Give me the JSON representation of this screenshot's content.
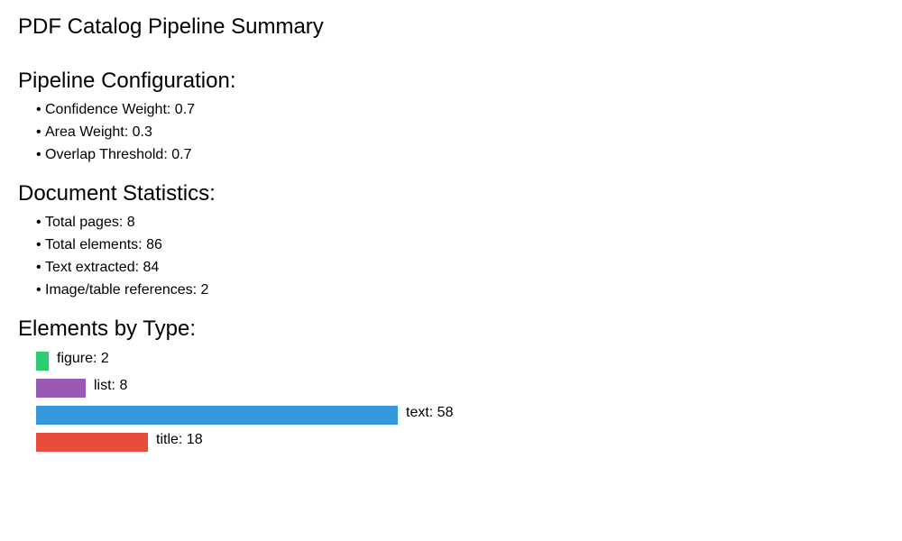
{
  "page": {
    "title": "PDF Catalog Pipeline Summary"
  },
  "sections": {
    "config": {
      "heading": "Pipeline Configuration:",
      "items": [
        {
          "label": "Confidence Weight",
          "value": "0.7"
        },
        {
          "label": "Area Weight",
          "value": "0.3"
        },
        {
          "label": "Overlap Threshold",
          "value": "0.7"
        }
      ]
    },
    "stats": {
      "heading": "Document Statistics:",
      "items": [
        {
          "label": "Total pages",
          "value": "8"
        },
        {
          "label": "Total elements",
          "value": "86"
        },
        {
          "label": "Text extracted",
          "value": "84"
        },
        {
          "label": "Image/table references",
          "value": "2"
        }
      ]
    },
    "types": {
      "heading": "Elements by Type:"
    }
  },
  "chart_data": {
    "type": "bar",
    "orientation": "horizontal",
    "categories": [
      "figure",
      "list",
      "text",
      "title"
    ],
    "values": [
      2,
      8,
      58,
      18
    ],
    "colors": [
      "#2ecc71",
      "#9b59b6",
      "#3498db",
      "#e74c3c"
    ],
    "title": "",
    "xlabel": "",
    "ylabel": ""
  }
}
